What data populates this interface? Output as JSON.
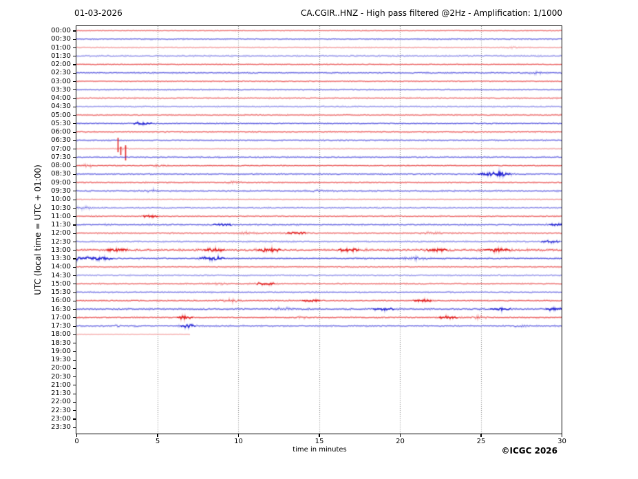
{
  "header": {
    "date": "01-03-2026",
    "title": "CA.CGIR..HNZ - High pass filtered @2Hz - Amplification: 1/1000"
  },
  "footer": {
    "copyright": "©ICGC 2026"
  },
  "colors": {
    "red": "#e32222",
    "blue": "#2b2bd5",
    "grid": "#7d7d7d",
    "axis": "#000000",
    "text": "#000000",
    "background": "#ffffff"
  },
  "chart_data": {
    "type": "line",
    "title": "CA.CGIR..HNZ - High pass filtered @2Hz - Amplification: 1/1000",
    "date": "01-03-2026",
    "xlabel": "time in minutes",
    "ylabel": "UTC (local time = UTC + 01:00)",
    "x_range": [
      0,
      30
    ],
    "x_ticks": [
      0,
      5,
      10,
      15,
      20,
      25,
      30
    ],
    "row_interval_minutes": 30,
    "grid": "vertical-dotted-every-5-min",
    "rows": [
      {
        "t": "00:00",
        "c": "red",
        "a": 0.7,
        "n": 0.5,
        "end": 30,
        "ev": []
      },
      {
        "t": "00:30",
        "c": "blue",
        "a": 0.9,
        "n": 0.6,
        "end": 30,
        "ev": []
      },
      {
        "t": "01:00",
        "c": "red",
        "a": 0.55,
        "n": 0.5,
        "end": 30,
        "ev": [
          {
            "m": 26.9,
            "amp": 1.2,
            "w": 0.25
          }
        ]
      },
      {
        "t": "01:30",
        "c": "blue",
        "a": 0.65,
        "n": 0.7,
        "end": 30,
        "ev": []
      },
      {
        "t": "02:00",
        "c": "red",
        "a": 0.9,
        "n": 0.55,
        "end": 30,
        "ev": []
      },
      {
        "t": "02:30",
        "c": "blue",
        "a": 0.9,
        "n": 0.65,
        "end": 30,
        "ev": [
          {
            "m": 28.4,
            "amp": 1.2,
            "w": 0.3
          }
        ]
      },
      {
        "t": "03:00",
        "c": "red",
        "a": 0.85,
        "n": 0.55,
        "end": 30,
        "ev": []
      },
      {
        "t": "03:30",
        "c": "blue",
        "a": 0.8,
        "n": 0.6,
        "end": 30,
        "ev": []
      },
      {
        "t": "04:00",
        "c": "red",
        "a": 0.8,
        "n": 0.6,
        "end": 30,
        "ev": []
      },
      {
        "t": "04:30",
        "c": "blue",
        "a": 0.6,
        "n": 0.7,
        "end": 30,
        "ev": []
      },
      {
        "t": "05:00",
        "c": "red",
        "a": 0.85,
        "n": 0.55,
        "end": 30,
        "ev": []
      },
      {
        "t": "05:30",
        "c": "blue",
        "a": 0.9,
        "n": 0.65,
        "end": 30,
        "ev": [
          {
            "m": 4.1,
            "amp": 1.8,
            "w": 0.35
          }
        ]
      },
      {
        "t": "06:00",
        "c": "red",
        "a": 0.9,
        "n": 0.6,
        "end": 30,
        "ev": []
      },
      {
        "t": "06:30",
        "c": "blue",
        "a": 0.9,
        "n": 0.65,
        "end": 30,
        "ev": []
      },
      {
        "t": "07:00",
        "c": "red",
        "a": 0.5,
        "n": 0.4,
        "end": 30,
        "ev": [
          {
            "type": "spike",
            "m": 2.55,
            "up": 16,
            "dn": 5
          },
          {
            "type": "spike",
            "m": 2.72,
            "up": 3,
            "dn": 9
          },
          {
            "type": "spike",
            "m": 3.02,
            "up": 5,
            "dn": 17
          },
          {
            "m": 2.8,
            "amp": 1.2,
            "w": 0.3
          }
        ]
      },
      {
        "t": "07:30",
        "c": "blue",
        "a": 0.9,
        "n": 0.65,
        "end": 30,
        "ev": []
      },
      {
        "t": "08:00",
        "c": "red",
        "a": 0.9,
        "n": 0.6,
        "end": 30,
        "ev": [
          {
            "m": 0.7,
            "amp": 1.3,
            "w": 0.25
          },
          {
            "m": 5.2,
            "amp": 1.2,
            "w": 0.3
          }
        ]
      },
      {
        "t": "08:30",
        "c": "blue",
        "a": 0.9,
        "n": 0.65,
        "end": 30,
        "ev": [
          {
            "m": 25.6,
            "amp": 1.8,
            "w": 0.5
          },
          {
            "m": 26.3,
            "amp": 2.0,
            "w": 0.35
          }
        ]
      },
      {
        "t": "09:00",
        "c": "red",
        "a": 0.9,
        "n": 0.6,
        "end": 30,
        "ev": [
          {
            "m": 9.8,
            "amp": 1.2,
            "w": 0.3
          }
        ]
      },
      {
        "t": "09:30",
        "c": "blue",
        "a": 0.9,
        "n": 0.7,
        "end": 30,
        "ev": [
          {
            "m": 4.6,
            "amp": 1.3,
            "w": 0.3
          },
          {
            "m": 14.9,
            "amp": 1.2,
            "w": 0.3
          }
        ]
      },
      {
        "t": "10:00",
        "c": "red",
        "a": 0.55,
        "n": 0.5,
        "end": 30,
        "ev": []
      },
      {
        "t": "10:30",
        "c": "blue",
        "a": 0.65,
        "n": 0.7,
        "end": 30,
        "ev": [
          {
            "m": 0.5,
            "amp": 1.3,
            "w": 0.3
          }
        ]
      },
      {
        "t": "11:00",
        "c": "red",
        "a": 0.85,
        "n": 0.6,
        "end": 30,
        "ev": [
          {
            "m": 4.6,
            "amp": 1.4,
            "w": 0.3
          }
        ]
      },
      {
        "t": "11:30",
        "c": "blue",
        "a": 0.9,
        "n": 0.75,
        "end": 30,
        "ev": [
          {
            "m": 9.0,
            "amp": 1.4,
            "w": 0.35
          },
          {
            "m": 29.7,
            "amp": 1.5,
            "w": 0.3
          }
        ]
      },
      {
        "t": "12:00",
        "c": "red",
        "a": 0.85,
        "n": 0.6,
        "end": 30,
        "ev": [
          {
            "m": 10.6,
            "amp": 1.2,
            "w": 0.3
          },
          {
            "m": 13.6,
            "amp": 1.6,
            "w": 0.35
          },
          {
            "m": 21.9,
            "amp": 1.3,
            "w": 0.4
          }
        ]
      },
      {
        "t": "12:30",
        "c": "blue",
        "a": 0.7,
        "n": 0.75,
        "end": 30,
        "ev": [
          {
            "m": 29.3,
            "amp": 1.7,
            "w": 0.35
          }
        ]
      },
      {
        "t": "13:00",
        "c": "red",
        "a": 1.0,
        "n": 1.0,
        "end": 30,
        "ev": [
          {
            "m": 2.5,
            "amp": 1.6,
            "w": 0.4
          },
          {
            "m": 8.5,
            "amp": 1.8,
            "w": 0.4
          },
          {
            "m": 11.9,
            "amp": 2.2,
            "w": 0.45
          },
          {
            "m": 16.8,
            "amp": 1.4,
            "w": 0.4
          },
          {
            "m": 22.3,
            "amp": 1.6,
            "w": 0.4
          },
          {
            "m": 26.0,
            "amp": 1.8,
            "w": 0.5
          }
        ]
      },
      {
        "t": "13:30",
        "c": "blue",
        "a": 0.95,
        "n": 0.85,
        "end": 30,
        "ev": [
          {
            "m": 0.4,
            "amp": 2.0,
            "w": 0.6
          },
          {
            "m": 1.6,
            "amp": 1.5,
            "w": 0.4
          },
          {
            "m": 8.4,
            "amp": 2.2,
            "w": 0.5
          },
          {
            "m": 21.0,
            "amp": 1.2,
            "w": 0.4
          }
        ]
      },
      {
        "t": "14:00",
        "c": "red",
        "a": 0.85,
        "n": 0.6,
        "end": 30,
        "ev": []
      },
      {
        "t": "14:30",
        "c": "blue",
        "a": 0.6,
        "n": 0.7,
        "end": 30,
        "ev": []
      },
      {
        "t": "15:00",
        "c": "red",
        "a": 0.85,
        "n": 0.6,
        "end": 30,
        "ev": [
          {
            "m": 8.8,
            "amp": 1.2,
            "w": 0.3
          },
          {
            "m": 11.7,
            "amp": 1.9,
            "w": 0.35
          }
        ]
      },
      {
        "t": "15:30",
        "c": "blue",
        "a": 0.8,
        "n": 0.65,
        "end": 30,
        "ev": []
      },
      {
        "t": "16:00",
        "c": "red",
        "a": 0.9,
        "n": 0.7,
        "end": 30,
        "ev": [
          {
            "m": 9.6,
            "amp": 1.3,
            "w": 0.35
          },
          {
            "m": 14.5,
            "amp": 1.4,
            "w": 0.35
          },
          {
            "m": 21.4,
            "amp": 1.5,
            "w": 0.35
          }
        ]
      },
      {
        "t": "16:30",
        "c": "blue",
        "a": 0.95,
        "n": 0.85,
        "end": 30,
        "ev": [
          {
            "m": 12.8,
            "amp": 1.3,
            "w": 0.4
          },
          {
            "m": 19.0,
            "amp": 1.4,
            "w": 0.4
          },
          {
            "m": 26.2,
            "amp": 1.6,
            "w": 0.4
          },
          {
            "m": 29.5,
            "amp": 1.4,
            "w": 0.3
          }
        ]
      },
      {
        "t": "17:00",
        "c": "red",
        "a": 0.9,
        "n": 0.7,
        "end": 30,
        "ev": [
          {
            "m": 6.7,
            "amp": 2.2,
            "w": 0.3
          },
          {
            "m": 13.9,
            "amp": 1.3,
            "w": 0.3
          },
          {
            "m": 23.0,
            "amp": 1.5,
            "w": 0.35
          },
          {
            "m": 24.9,
            "amp": 1.3,
            "w": 0.3
          }
        ]
      },
      {
        "t": "17:30",
        "c": "blue",
        "a": 0.9,
        "n": 0.7,
        "end": 30,
        "ev": [
          {
            "m": 2.5,
            "amp": 1.2,
            "w": 0.3
          },
          {
            "m": 6.9,
            "amp": 2.2,
            "w": 0.3
          },
          {
            "m": 27.5,
            "amp": 1.2,
            "w": 0.3
          }
        ]
      },
      {
        "t": "18:00",
        "c": "red",
        "a": 0.45,
        "n": 0.25,
        "end": 7.0,
        "ev": []
      },
      {
        "t": "18:30",
        "c": "blue",
        "a": 0,
        "n": 0,
        "end": 0,
        "ev": []
      },
      {
        "t": "19:00",
        "c": "red",
        "a": 0,
        "n": 0,
        "end": 0,
        "ev": []
      },
      {
        "t": "19:30",
        "c": "blue",
        "a": 0,
        "n": 0,
        "end": 0,
        "ev": []
      },
      {
        "t": "20:00",
        "c": "red",
        "a": 0,
        "n": 0,
        "end": 0,
        "ev": []
      },
      {
        "t": "20:30",
        "c": "blue",
        "a": 0,
        "n": 0,
        "end": 0,
        "ev": []
      },
      {
        "t": "21:00",
        "c": "red",
        "a": 0,
        "n": 0,
        "end": 0,
        "ev": []
      },
      {
        "t": "21:30",
        "c": "blue",
        "a": 0,
        "n": 0,
        "end": 0,
        "ev": []
      },
      {
        "t": "22:00",
        "c": "red",
        "a": 0,
        "n": 0,
        "end": 0,
        "ev": []
      },
      {
        "t": "22:30",
        "c": "blue",
        "a": 0,
        "n": 0,
        "end": 0,
        "ev": []
      },
      {
        "t": "23:00",
        "c": "red",
        "a": 0,
        "n": 0,
        "end": 0,
        "ev": []
      },
      {
        "t": "23:30",
        "c": "blue",
        "a": 0,
        "n": 0,
        "end": 0,
        "ev": []
      }
    ]
  }
}
